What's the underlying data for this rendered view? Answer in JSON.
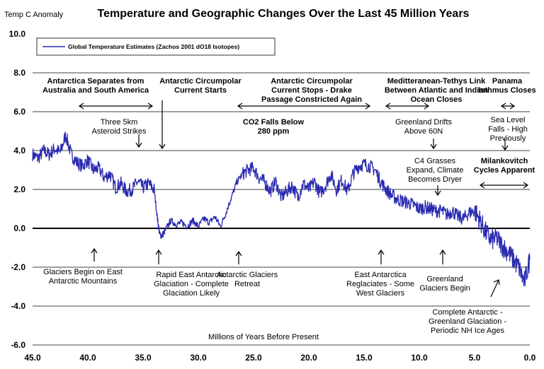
{
  "chart_data": {
    "type": "line",
    "title": "Temperature and Geographic Changes Over the Last 45 Million Years",
    "ylabel": "Temp C Anomaly",
    "xlabel": "Millions of Years Before Present",
    "xlim": [
      45,
      0
    ],
    "ylim": [
      -6,
      10
    ],
    "x_ticks": [
      "45.0",
      "40.0",
      "35.0",
      "30.0",
      "25.0",
      "20.0",
      "15.0",
      "10.0",
      "5.0",
      "0.0"
    ],
    "y_ticks": [
      "10.0",
      "8.0",
      "6.0",
      "4.0",
      "2.0",
      "0.0",
      "-2.0",
      "-4.0",
      "-6.0"
    ],
    "grid": "horizontal",
    "legend_position": "top-left",
    "series": [
      {
        "name": "Global Temperature Estimates (Zachos 2001 dO18 Isotopes)",
        "color": "#2b2bb0",
        "x": [
          45.0,
          44.5,
          44.0,
          43.5,
          43.0,
          42.5,
          42.0,
          41.5,
          41.0,
          40.5,
          40.0,
          39.5,
          39.0,
          38.5,
          38.0,
          37.5,
          37.0,
          36.5,
          36.0,
          35.5,
          35.0,
          34.5,
          34.0,
          33.7,
          33.5,
          33.3,
          33.0,
          32.5,
          32.0,
          31.5,
          31.0,
          30.5,
          30.0,
          29.5,
          29.0,
          28.5,
          28.0,
          27.5,
          27.0,
          26.5,
          26.0,
          25.5,
          25.0,
          24.5,
          24.0,
          23.5,
          23.0,
          22.5,
          22.0,
          21.5,
          21.0,
          20.5,
          20.0,
          19.5,
          19.0,
          18.5,
          18.0,
          17.5,
          17.0,
          16.5,
          16.0,
          15.5,
          15.0,
          14.5,
          14.0,
          13.5,
          13.0,
          12.5,
          12.0,
          11.5,
          11.0,
          10.5,
          10.0,
          9.5,
          9.0,
          8.5,
          8.0,
          7.5,
          7.0,
          6.5,
          6.0,
          5.5,
          5.0,
          4.5,
          4.0,
          3.5,
          3.0,
          2.5,
          2.0,
          1.5,
          1.0,
          0.5,
          0.0
        ],
        "y": [
          3.8,
          3.6,
          4.0,
          3.8,
          4.1,
          3.9,
          4.8,
          3.8,
          3.4,
          3.2,
          3.5,
          3.0,
          3.1,
          2.6,
          2.8,
          2.1,
          2.3,
          1.9,
          2.0,
          2.4,
          2.1,
          2.3,
          2.0,
          0.5,
          -0.3,
          -0.4,
          -0.1,
          0.4,
          0.2,
          0.3,
          0.1,
          0.4,
          0.1,
          0.5,
          0.3,
          0.6,
          0.1,
          0.8,
          1.6,
          2.4,
          2.8,
          3.0,
          3.1,
          2.6,
          2.4,
          1.9,
          2.4,
          1.6,
          1.9,
          2.2,
          1.6,
          2.3,
          2.0,
          2.4,
          1.8,
          2.2,
          2.8,
          2.0,
          2.5,
          1.9,
          2.8,
          3.2,
          3.3,
          3.2,
          3.0,
          2.4,
          2.0,
          1.7,
          1.5,
          1.4,
          1.3,
          1.2,
          1.0,
          1.1,
          1.0,
          0.9,
          0.9,
          0.7,
          0.9,
          0.6,
          0.5,
          0.8,
          0.9,
          0.4,
          -0.2,
          -0.6,
          -0.5,
          -0.9,
          -1.2,
          -1.6,
          -2.0,
          -2.8,
          -1.6
        ]
      }
    ],
    "annotations": {
      "above": [
        {
          "lines": [
            "Antarctica Separates from",
            "Australia and South America"
          ],
          "bold": true
        },
        {
          "lines": [
            "Antarctic Circumpolar",
            "Current Starts"
          ],
          "bold": true
        },
        {
          "lines": [
            "Antarctic Circumpolar",
            "Current Stops - Drake",
            "Passage Constricted Again"
          ],
          "bold": true
        },
        {
          "lines": [
            "Meditteranean-Tethys Link",
            "Between Atlantic and Indian",
            "Ocean Closes"
          ],
          "bold": true
        },
        {
          "lines": [
            "Panama",
            "Isthmus Closes"
          ],
          "bold": true
        },
        {
          "lines": [
            "Three 5km",
            "Asteroid Strikes"
          ],
          "bold": false
        },
        {
          "lines": [
            "CO2 Falls Below",
            "280 ppm"
          ],
          "bold": true
        },
        {
          "lines": [
            "Greenland Drifts",
            "Above 60N"
          ],
          "bold": false
        },
        {
          "lines": [
            "Sea Level",
            "Falls - High",
            "Previously"
          ],
          "bold": false
        },
        {
          "lines": [
            "C4 Grasses",
            "Expand, Climate",
            "Becomes Dryer"
          ],
          "bold": false
        },
        {
          "lines": [
            "Milankovitch",
            "Cycles Apparent"
          ],
          "bold": true
        }
      ],
      "below": [
        {
          "lines": [
            "Glaciers Begin on East",
            "Antarctic Mountains"
          ],
          "bold": false
        },
        {
          "lines": [
            "Rapid East Antarctic",
            "Glaciation - Complete",
            "Glaciation Likely"
          ],
          "bold": false
        },
        {
          "lines": [
            "Antarctic Glaciers",
            "Retreat"
          ],
          "bold": false
        },
        {
          "lines": [
            "East Antarctica",
            "Reglaciates - Some",
            "West Glaciers"
          ],
          "bold": false
        },
        {
          "lines": [
            "Greenland",
            "Glaciers Begin"
          ],
          "bold": false
        },
        {
          "lines": [
            "Complete Antarctic -",
            "Greenland Glaciation -",
            "Periodic NH Ice Ages"
          ],
          "bold": false
        }
      ]
    }
  }
}
